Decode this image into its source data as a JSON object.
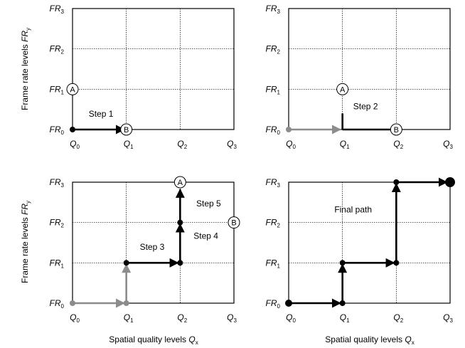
{
  "axes": {
    "y_title": "Frame rate levels ",
    "y_title_var": "FR",
    "y_title_sub": "y",
    "x_title": "Spatial quality levels ",
    "x_title_var": "Q",
    "x_title_sub": "x"
  },
  "ticks": {
    "x": [
      {
        "var": "Q",
        "sub": "0"
      },
      {
        "var": "Q",
        "sub": "1"
      },
      {
        "var": "Q",
        "sub": "2"
      },
      {
        "var": "Q",
        "sub": "3"
      }
    ],
    "y": [
      {
        "var": "FR",
        "sub": "0"
      },
      {
        "var": "FR",
        "sub": "1"
      },
      {
        "var": "FR",
        "sub": "2"
      },
      {
        "var": "FR",
        "sub": "3"
      }
    ]
  },
  "colors": {
    "dark": "#000000",
    "gray": "#8c8c8c",
    "grid": "#000000"
  },
  "panels": [
    {
      "id": "panel-1",
      "labels": [
        {
          "text": "Step 1",
          "at": [
            0.3,
            0.32
          ]
        }
      ],
      "markers": [
        {
          "text": "A",
          "at": [
            0,
            1
          ]
        },
        {
          "text": "B",
          "at": [
            1,
            0
          ]
        }
      ],
      "segments": [
        {
          "from": [
            0,
            0
          ],
          "to": [
            0.96,
            0
          ],
          "color": "dark",
          "arrow": true
        }
      ],
      "dots": [
        {
          "at": [
            0,
            0
          ],
          "color": "dark",
          "r": 4
        }
      ]
    },
    {
      "id": "panel-2",
      "labels": [
        {
          "text": "Step 2",
          "at": [
            1.2,
            0.5
          ]
        }
      ],
      "markers": [
        {
          "text": "A",
          "at": [
            1,
            1
          ]
        },
        {
          "text": "B",
          "at": [
            2,
            0
          ]
        }
      ],
      "segments": [
        {
          "from": [
            0,
            0
          ],
          "to": [
            0.96,
            0
          ],
          "color": "gray",
          "arrow": true
        },
        {
          "from": [
            1,
            0
          ],
          "to": [
            1,
            0.4
          ],
          "color": "dark",
          "arrow": false
        },
        {
          "from": [
            1,
            0
          ],
          "to": [
            2,
            0
          ],
          "color": "dark",
          "arrow": false
        }
      ],
      "dots": [
        {
          "at": [
            0,
            0
          ],
          "color": "gray",
          "r": 4
        }
      ]
    },
    {
      "id": "panel-3",
      "labels": [
        {
          "text": "Step 3",
          "at": [
            1.25,
            1.32
          ]
        },
        {
          "text": "Step 4",
          "at": [
            2.25,
            1.6
          ]
        },
        {
          "text": "Step 5",
          "at": [
            2.3,
            2.4
          ]
        }
      ],
      "markers": [
        {
          "text": "A",
          "at": [
            2,
            3
          ]
        },
        {
          "text": "B",
          "at": [
            3,
            2
          ]
        }
      ],
      "segments": [
        {
          "from": [
            0,
            0
          ],
          "to": [
            0.96,
            0
          ],
          "color": "gray",
          "arrow": true
        },
        {
          "from": [
            1,
            0
          ],
          "to": [
            1,
            0.96
          ],
          "color": "gray",
          "arrow": true
        },
        {
          "from": [
            1,
            1
          ],
          "to": [
            1.96,
            1
          ],
          "color": "dark",
          "arrow": true
        },
        {
          "from": [
            2,
            1
          ],
          "to": [
            2,
            1.96
          ],
          "color": "dark",
          "arrow": true
        },
        {
          "from": [
            2,
            2
          ],
          "to": [
            2,
            2.82
          ],
          "color": "dark",
          "arrow": true
        }
      ],
      "dots": [
        {
          "at": [
            0,
            0
          ],
          "color": "gray",
          "r": 4
        },
        {
          "at": [
            1,
            0
          ],
          "color": "gray",
          "r": 4
        },
        {
          "at": [
            1,
            1
          ],
          "color": "dark",
          "r": 4
        },
        {
          "at": [
            2,
            1
          ],
          "color": "dark",
          "r": 4
        },
        {
          "at": [
            2,
            2
          ],
          "color": "dark",
          "r": 4
        }
      ]
    },
    {
      "id": "panel-4",
      "labels": [
        {
          "text": "Final path",
          "at": [
            0.85,
            2.25
          ]
        }
      ],
      "markers": [],
      "segments": [
        {
          "from": [
            0,
            0
          ],
          "to": [
            0.96,
            0
          ],
          "color": "dark",
          "arrow": true
        },
        {
          "from": [
            1,
            0
          ],
          "to": [
            1,
            0.96
          ],
          "color": "dark",
          "arrow": true
        },
        {
          "from": [
            1,
            1
          ],
          "to": [
            1.96,
            1
          ],
          "color": "dark",
          "arrow": true
        },
        {
          "from": [
            2,
            1
          ],
          "to": [
            2,
            2.96
          ],
          "color": "dark",
          "arrow": true
        },
        {
          "from": [
            2,
            3
          ],
          "to": [
            2.94,
            3
          ],
          "color": "dark",
          "arrow": true
        }
      ],
      "dots": [
        {
          "at": [
            0,
            0
          ],
          "color": "dark",
          "r": 5
        },
        {
          "at": [
            1,
            0
          ],
          "color": "dark",
          "r": 4
        },
        {
          "at": [
            1,
            1
          ],
          "color": "dark",
          "r": 4
        },
        {
          "at": [
            2,
            1
          ],
          "color": "dark",
          "r": 4
        },
        {
          "at": [
            2,
            3
          ],
          "color": "dark",
          "r": 4
        },
        {
          "at": [
            3,
            3
          ],
          "color": "dark",
          "r": 7
        }
      ]
    }
  ]
}
